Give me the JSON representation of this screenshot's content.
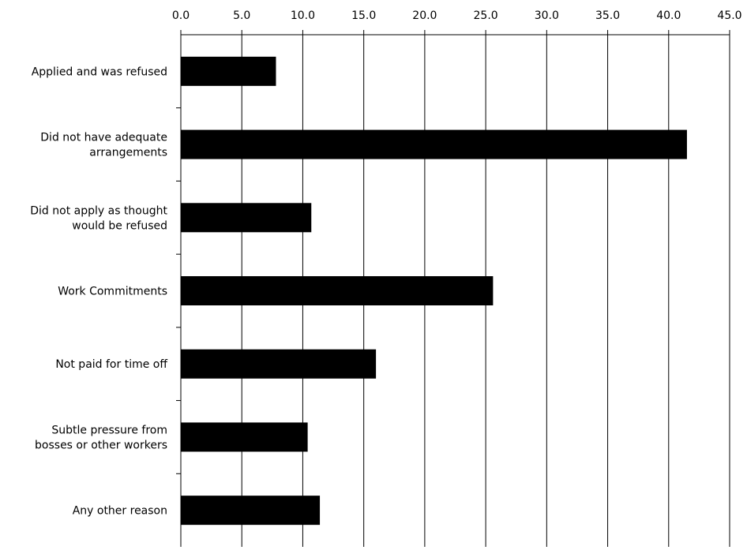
{
  "chart_data": {
    "type": "bar",
    "orientation": "horizontal",
    "title": "",
    "xlabel": "",
    "ylabel": "",
    "xlim": [
      0,
      45
    ],
    "ticks": [
      "0.0",
      "5.0",
      "10.0",
      "15.0",
      "20.0",
      "25.0",
      "30.0",
      "35.0",
      "40.0",
      "45.0"
    ],
    "tick_values": [
      0,
      5,
      10,
      15,
      20,
      25,
      30,
      35,
      40,
      45
    ],
    "axis_position": "top",
    "grid": true,
    "bar_color": "#000000",
    "categories": [
      [
        "Applied and was refused"
      ],
      [
        "Did not have adequate",
        "arrangements"
      ],
      [
        "Did not apply as thought",
        "would be refused"
      ],
      [
        "Work Commitments"
      ],
      [
        "Not paid for time off"
      ],
      [
        "Subtle pressure from",
        "bosses or other workers"
      ],
      [
        "Any other reason"
      ]
    ],
    "values": [
      7.8,
      41.5,
      10.7,
      25.6,
      16.0,
      10.4,
      11.4
    ]
  }
}
